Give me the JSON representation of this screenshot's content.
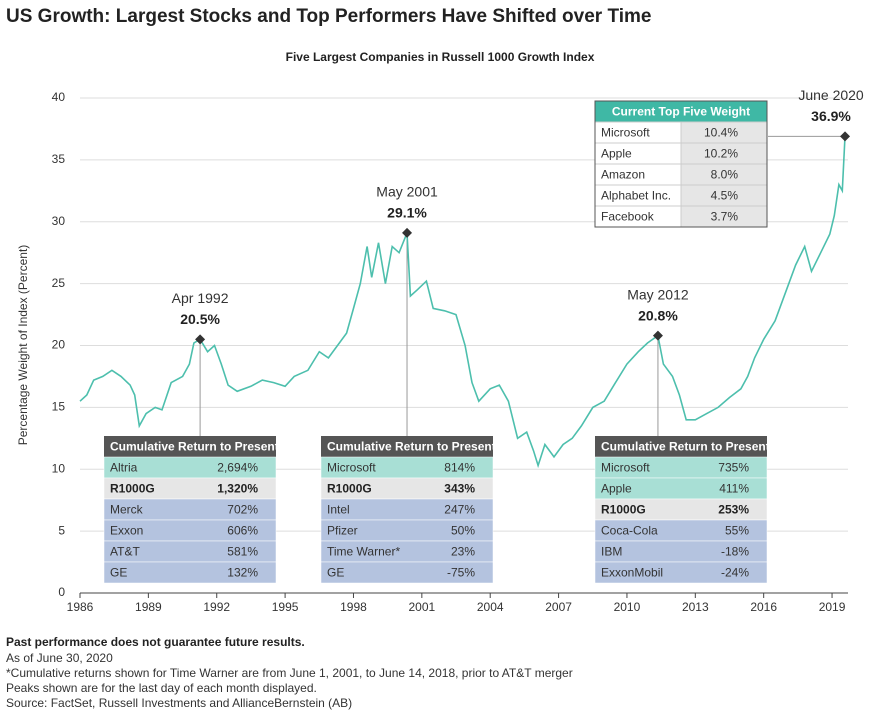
{
  "chart_data": {
    "type": "line",
    "title": "US Growth: Largest Stocks and Top Performers Have Shifted over Time",
    "subtitle": "Five Largest Companies in Russell 1000 Growth Index",
    "ylabel": "Percentage Weight of Index (Percent)",
    "color": "#4dbfad",
    "grid": true,
    "xlim": [
      1986,
      2019.7
    ],
    "xticks": [
      1986,
      1989,
      1992,
      1995,
      1998,
      2001,
      2004,
      2007,
      2010,
      2013,
      2016,
      2019
    ],
    "ylim": [
      0,
      40
    ],
    "yticks": [
      0,
      5,
      10,
      15,
      20,
      25,
      30,
      35,
      40
    ],
    "x": [
      1986,
      1986.3,
      1986.6,
      1987,
      1987.4,
      1987.8,
      1988.2,
      1988.4,
      1988.6,
      1988.9,
      1989.3,
      1989.6,
      1990,
      1990.5,
      1990.8,
      1991,
      1991.27,
      1991.6,
      1991.9,
      1992.2,
      1992.5,
      1992.9,
      1993.5,
      1994,
      1994.5,
      1995,
      1995.4,
      1996,
      1996.5,
      1996.9,
      1997.3,
      1997.7,
      1998,
      1998.3,
      1998.6,
      1998.8,
      1999.1,
      1999.4,
      1999.7,
      2000,
      2000.35,
      2000.5,
      2000.8,
      2001.2,
      2001.5,
      2002,
      2002.5,
      2002.9,
      2003.2,
      2003.5,
      2004,
      2004.4,
      2004.8,
      2005.2,
      2005.6,
      2005.9,
      2006.1,
      2006.4,
      2006.8,
      2007.2,
      2007.6,
      2008,
      2008.5,
      2009,
      2009.5,
      2010,
      2010.5,
      2010.9,
      2011.36,
      2011.6,
      2012,
      2012.3,
      2012.6,
      2013,
      2013.5,
      2014,
      2014.5,
      2015,
      2015.3,
      2015.6,
      2016,
      2016.5,
      2017,
      2017.4,
      2017.8,
      2018.1,
      2018.5,
      2018.9,
      2019.1,
      2019.3,
      2019.45,
      2019.57
    ],
    "values": [
      15.5,
      16,
      17.2,
      17.5,
      18,
      17.5,
      16.8,
      16,
      13.5,
      14.5,
      15,
      14.8,
      17,
      17.5,
      18.5,
      20.2,
      20.5,
      19.5,
      20,
      18.5,
      16.8,
      16.3,
      16.7,
      17.2,
      17,
      16.7,
      17.5,
      18,
      19.5,
      19,
      20,
      21,
      23,
      25,
      28,
      25.5,
      28.3,
      25,
      28,
      27.5,
      29.1,
      24,
      24.5,
      25.2,
      23,
      22.8,
      22.5,
      20,
      17,
      15.5,
      16.5,
      16.8,
      15.5,
      12.5,
      13,
      11.5,
      10.3,
      12,
      11,
      12,
      12.5,
      13.5,
      15,
      15.5,
      17,
      18.5,
      19.5,
      20.2,
      20.8,
      18.5,
      17.5,
      16,
      14,
      14,
      14.5,
      15,
      15.8,
      16.5,
      17.5,
      19,
      20.5,
      22,
      24.5,
      26.5,
      28,
      26,
      27.5,
      29,
      30.5,
      33,
      32.5,
      36.9
    ],
    "annotations": [
      {
        "date": "Apr 1992",
        "x": 1991.27,
        "value": 20.5,
        "label": "20.5%"
      },
      {
        "date": "May 2001",
        "x": 2000.35,
        "value": 29.1,
        "label": "29.1%"
      },
      {
        "date": "May 2012",
        "x": 2011.36,
        "value": 20.8,
        "label": "20.8%"
      },
      {
        "date": "June 2020",
        "x": 2019.57,
        "value": 36.9,
        "label": "36.9%"
      }
    ],
    "tables": [
      {
        "title": "Cumulative Return to Present",
        "rows": [
          {
            "name": "Altria",
            "value": "2,694%",
            "color": "#a8dfd5"
          },
          {
            "name": "R1000G",
            "value": "1,320%",
            "color": "#e6e6e6",
            "bold": true
          },
          {
            "name": "Merck",
            "value": "702%",
            "color": "#b4c3df"
          },
          {
            "name": "Exxon",
            "value": "606%",
            "color": "#b4c3df"
          },
          {
            "name": "AT&T",
            "value": "581%",
            "color": "#b4c3df"
          },
          {
            "name": "GE",
            "value": "132%",
            "color": "#b4c3df"
          }
        ]
      },
      {
        "title": "Cumulative Return to Present",
        "rows": [
          {
            "name": "Microsoft",
            "value": "814%",
            "color": "#a8dfd5"
          },
          {
            "name": "R1000G",
            "value": "343%",
            "color": "#e6e6e6",
            "bold": true
          },
          {
            "name": "Intel",
            "value": "247%",
            "color": "#b4c3df"
          },
          {
            "name": "Pfizer",
            "value": "50%",
            "color": "#b4c3df"
          },
          {
            "name": "Time Warner*",
            "value": "23%",
            "color": "#b4c3df"
          },
          {
            "name": "GE",
            "value": "-75%",
            "color": "#b4c3df"
          }
        ]
      },
      {
        "title": "Cumulative Return to Present",
        "rows": [
          {
            "name": "Microsoft",
            "value": "735%",
            "color": "#a8dfd5"
          },
          {
            "name": "Apple",
            "value": "411%",
            "color": "#a8dfd5"
          },
          {
            "name": "R1000G",
            "value": "253%",
            "color": "#e6e6e6",
            "bold": true
          },
          {
            "name": "Coca-Cola",
            "value": "55%",
            "color": "#b4c3df"
          },
          {
            "name": "IBM",
            "value": "-18%",
            "color": "#b4c3df"
          },
          {
            "name": "ExxonMobil",
            "value": "-24%",
            "color": "#b4c3df"
          }
        ]
      }
    ],
    "weights_table": {
      "title": "Current Top Five Weight",
      "rows": [
        {
          "name": "Microsoft",
          "value": "10.4%"
        },
        {
          "name": "Apple",
          "value": "10.2%"
        },
        {
          "name": "Amazon",
          "value": "8.0%"
        },
        {
          "name": "Alphabet Inc.",
          "value": "4.5%"
        },
        {
          "name": "Facebook",
          "value": "3.7%"
        }
      ]
    }
  },
  "footnotes": {
    "bold": "Past performance does not guarantee future results.",
    "lines": [
      "As of June 30, 2020",
      "*Cumulative returns shown for Time Warner are from June 1, 2001, to June 14, 2018, prior to AT&T merger",
      "Peaks shown are for the last day of each month displayed.",
      "Source: FactSet, Russell Investments and AllianceBernstein (AB)"
    ]
  }
}
